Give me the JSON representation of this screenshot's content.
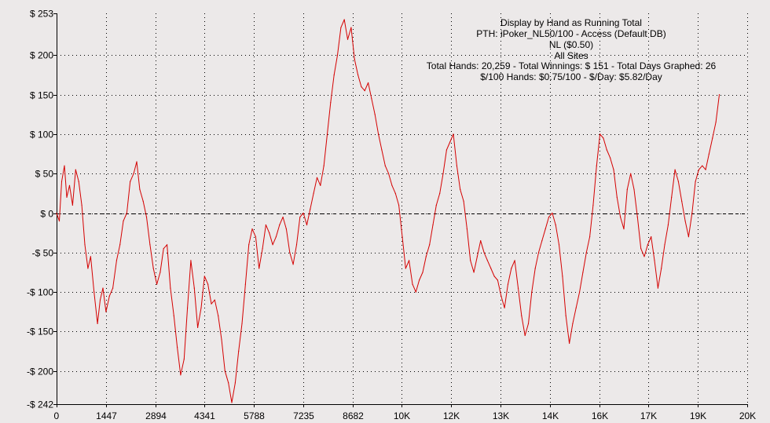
{
  "chart_data": {
    "type": "line",
    "title": "Display by Hand as Running Total",
    "subtitle_lines": [
      "PTH: iPoker_NL50/100 - Access (Default DB)",
      "NL ($0.50)",
      "All Sites",
      "Total Hands: 20,259 - Total Winnings: $ 151 - Total Days Graphed: 26",
      "$/100 Hands: $0.75/100 - $/Day: $5.82/Day"
    ],
    "xlabel": "",
    "ylabel": "",
    "xlim": [
      0,
      20259
    ],
    "ylim": [
      -242,
      253
    ],
    "x_ticks": [
      {
        "value": 0,
        "label": "0"
      },
      {
        "value": 1447,
        "label": "1447"
      },
      {
        "value": 2894,
        "label": "2894"
      },
      {
        "value": 4341,
        "label": "4341"
      },
      {
        "value": 5788,
        "label": "5788"
      },
      {
        "value": 7235,
        "label": "7235"
      },
      {
        "value": 8682,
        "label": "8682"
      },
      {
        "value": 10129,
        "label": "10K"
      },
      {
        "value": 11576,
        "label": "12K"
      },
      {
        "value": 13023,
        "label": "13K"
      },
      {
        "value": 14470,
        "label": "14K"
      },
      {
        "value": 15917,
        "label": "16K"
      },
      {
        "value": 17364,
        "label": "17K"
      },
      {
        "value": 18811,
        "label": "19K"
      },
      {
        "value": 20259,
        "label": "20K"
      }
    ],
    "y_ticks": [
      {
        "value": 253,
        "label": "$ 253"
      },
      {
        "value": 200,
        "label": "$ 200"
      },
      {
        "value": 150,
        "label": "$ 150"
      },
      {
        "value": 100,
        "label": "$ 100"
      },
      {
        "value": 50,
        "label": "$ 50"
      },
      {
        "value": 0,
        "label": "$ 0"
      },
      {
        "value": -50,
        "label": "-$ 50"
      },
      {
        "value": -100,
        "label": "-$ 100"
      },
      {
        "value": -150,
        "label": "-$ 150"
      },
      {
        "value": -200,
        "label": "-$ 200"
      },
      {
        "value": -242,
        "label": "-$ 242"
      }
    ],
    "grid": true,
    "series": [
      {
        "color": "#d40000",
        "points": [
          [
            0,
            0
          ],
          [
            80,
            -10
          ],
          [
            150,
            40
          ],
          [
            230,
            60
          ],
          [
            300,
            20
          ],
          [
            380,
            35
          ],
          [
            470,
            10
          ],
          [
            560,
            55
          ],
          [
            650,
            40
          ],
          [
            740,
            10
          ],
          [
            830,
            -40
          ],
          [
            920,
            -70
          ],
          [
            1000,
            -55
          ],
          [
            1100,
            -100
          ],
          [
            1200,
            -140
          ],
          [
            1280,
            -110
          ],
          [
            1360,
            -95
          ],
          [
            1450,
            -125
          ],
          [
            1550,
            -105
          ],
          [
            1650,
            -95
          ],
          [
            1760,
            -60
          ],
          [
            1860,
            -40
          ],
          [
            1960,
            -10
          ],
          [
            2060,
            0
          ],
          [
            2160,
            40
          ],
          [
            2260,
            50
          ],
          [
            2350,
            65
          ],
          [
            2440,
            30
          ],
          [
            2540,
            15
          ],
          [
            2640,
            -5
          ],
          [
            2740,
            -40
          ],
          [
            2840,
            -70
          ],
          [
            2940,
            -90
          ],
          [
            3040,
            -75
          ],
          [
            3140,
            -45
          ],
          [
            3240,
            -40
          ],
          [
            3340,
            -95
          ],
          [
            3440,
            -130
          ],
          [
            3540,
            -170
          ],
          [
            3640,
            -205
          ],
          [
            3740,
            -185
          ],
          [
            3840,
            -120
          ],
          [
            3940,
            -60
          ],
          [
            4040,
            -95
          ],
          [
            4140,
            -145
          ],
          [
            4240,
            -120
          ],
          [
            4340,
            -80
          ],
          [
            4440,
            -90
          ],
          [
            4540,
            -115
          ],
          [
            4640,
            -110
          ],
          [
            4740,
            -130
          ],
          [
            4840,
            -160
          ],
          [
            4940,
            -200
          ],
          [
            5040,
            -215
          ],
          [
            5140,
            -240
          ],
          [
            5240,
            -215
          ],
          [
            5340,
            -175
          ],
          [
            5440,
            -140
          ],
          [
            5540,
            -90
          ],
          [
            5640,
            -40
          ],
          [
            5740,
            -20
          ],
          [
            5840,
            -30
          ],
          [
            5940,
            -70
          ],
          [
            6040,
            -45
          ],
          [
            6140,
            -15
          ],
          [
            6240,
            -25
          ],
          [
            6340,
            -40
          ],
          [
            6440,
            -30
          ],
          [
            6540,
            -15
          ],
          [
            6640,
            -5
          ],
          [
            6740,
            -20
          ],
          [
            6840,
            -50
          ],
          [
            6940,
            -65
          ],
          [
            7040,
            -40
          ],
          [
            7140,
            -5
          ],
          [
            7240,
            0
          ],
          [
            7340,
            -15
          ],
          [
            7440,
            5
          ],
          [
            7540,
            25
          ],
          [
            7640,
            45
          ],
          [
            7740,
            35
          ],
          [
            7840,
            60
          ],
          [
            7940,
            100
          ],
          [
            8040,
            140
          ],
          [
            8140,
            175
          ],
          [
            8240,
            200
          ],
          [
            8340,
            235
          ],
          [
            8440,
            245
          ],
          [
            8540,
            220
          ],
          [
            8640,
            235
          ],
          [
            8740,
            195
          ],
          [
            8840,
            175
          ],
          [
            8940,
            160
          ],
          [
            9040,
            155
          ],
          [
            9140,
            165
          ],
          [
            9240,
            145
          ],
          [
            9340,
            125
          ],
          [
            9440,
            100
          ],
          [
            9540,
            80
          ],
          [
            9640,
            60
          ],
          [
            9740,
            50
          ],
          [
            9840,
            35
          ],
          [
            9940,
            25
          ],
          [
            10040,
            10
          ],
          [
            10140,
            -30
          ],
          [
            10240,
            -70
          ],
          [
            10340,
            -60
          ],
          [
            10440,
            -90
          ],
          [
            10540,
            -100
          ],
          [
            10640,
            -85
          ],
          [
            10740,
            -75
          ],
          [
            10840,
            -55
          ],
          [
            10940,
            -40
          ],
          [
            11040,
            -15
          ],
          [
            11140,
            10
          ],
          [
            11240,
            25
          ],
          [
            11340,
            50
          ],
          [
            11440,
            80
          ],
          [
            11540,
            90
          ],
          [
            11640,
            100
          ],
          [
            11740,
            60
          ],
          [
            11840,
            30
          ],
          [
            11940,
            15
          ],
          [
            12040,
            -20
          ],
          [
            12140,
            -60
          ],
          [
            12240,
            -75
          ],
          [
            12340,
            -55
          ],
          [
            12440,
            -35
          ],
          [
            12540,
            -50
          ],
          [
            12640,
            -60
          ],
          [
            12740,
            -70
          ],
          [
            12840,
            -80
          ],
          [
            12940,
            -85
          ],
          [
            13040,
            -105
          ],
          [
            13140,
            -120
          ],
          [
            13240,
            -90
          ],
          [
            13340,
            -70
          ],
          [
            13440,
            -60
          ],
          [
            13540,
            -95
          ],
          [
            13640,
            -130
          ],
          [
            13740,
            -155
          ],
          [
            13840,
            -140
          ],
          [
            13940,
            -100
          ],
          [
            14040,
            -70
          ],
          [
            14140,
            -50
          ],
          [
            14240,
            -35
          ],
          [
            14340,
            -20
          ],
          [
            14440,
            -5
          ],
          [
            14540,
            0
          ],
          [
            14640,
            -15
          ],
          [
            14740,
            -40
          ],
          [
            14840,
            -80
          ],
          [
            14940,
            -130
          ],
          [
            15040,
            -165
          ],
          [
            15140,
            -140
          ],
          [
            15240,
            -120
          ],
          [
            15340,
            -100
          ],
          [
            15440,
            -75
          ],
          [
            15540,
            -50
          ],
          [
            15640,
            -30
          ],
          [
            15740,
            10
          ],
          [
            15840,
            60
          ],
          [
            15940,
            100
          ],
          [
            16040,
            95
          ],
          [
            16140,
            80
          ],
          [
            16240,
            70
          ],
          [
            16340,
            55
          ],
          [
            16440,
            20
          ],
          [
            16540,
            -5
          ],
          [
            16640,
            -20
          ],
          [
            16740,
            30
          ],
          [
            16840,
            50
          ],
          [
            16940,
            30
          ],
          [
            17040,
            -5
          ],
          [
            17140,
            -45
          ],
          [
            17240,
            -55
          ],
          [
            17340,
            -40
          ],
          [
            17440,
            -30
          ],
          [
            17540,
            -60
          ],
          [
            17640,
            -95
          ],
          [
            17740,
            -70
          ],
          [
            17840,
            -40
          ],
          [
            17940,
            -15
          ],
          [
            18040,
            20
          ],
          [
            18140,
            55
          ],
          [
            18240,
            40
          ],
          [
            18340,
            15
          ],
          [
            18440,
            -10
          ],
          [
            18540,
            -30
          ],
          [
            18640,
            0
          ],
          [
            18740,
            40
          ],
          [
            18840,
            55
          ],
          [
            18940,
            60
          ],
          [
            19040,
            55
          ],
          [
            19140,
            75
          ],
          [
            19240,
            95
          ],
          [
            19340,
            115
          ],
          [
            19440,
            150
          ]
        ]
      }
    ]
  }
}
